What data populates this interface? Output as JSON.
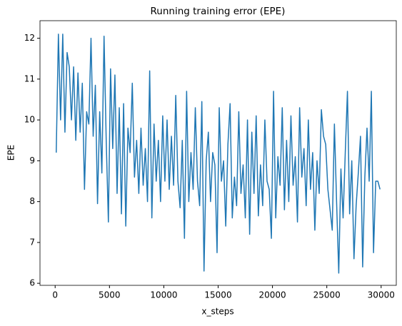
{
  "chart_data": {
    "type": "line",
    "title": "Running training error (EPE)",
    "xlabel": "x_steps",
    "ylabel": "EPE",
    "x": [
      100,
      300,
      500,
      700,
      900,
      1100,
      1300,
      1500,
      1700,
      1900,
      2100,
      2300,
      2500,
      2700,
      2900,
      3100,
      3300,
      3500,
      3700,
      3900,
      4100,
      4300,
      4500,
      4700,
      4900,
      5100,
      5300,
      5500,
      5700,
      5900,
      6100,
      6300,
      6500,
      6700,
      6900,
      7100,
      7300,
      7500,
      7700,
      7900,
      8100,
      8300,
      8500,
      8700,
      8900,
      9100,
      9300,
      9500,
      9700,
      9900,
      10100,
      10300,
      10500,
      10700,
      10900,
      11100,
      11300,
      11500,
      11700,
      11900,
      12100,
      12300,
      12500,
      12700,
      12900,
      13100,
      13300,
      13500,
      13700,
      13900,
      14100,
      14300,
      14500,
      14700,
      14900,
      15100,
      15300,
      15500,
      15700,
      15900,
      16100,
      16300,
      16500,
      16700,
      16900,
      17100,
      17300,
      17500,
      17700,
      17900,
      18100,
      18300,
      18500,
      18700,
      18900,
      19100,
      19300,
      19500,
      19700,
      19900,
      20100,
      20300,
      20500,
      20700,
      20900,
      21100,
      21300,
      21500,
      21700,
      21900,
      22100,
      22300,
      22500,
      22700,
      22900,
      23100,
      23300,
      23500,
      23700,
      23900,
      24100,
      24300,
      24500,
      24700,
      24900,
      25100,
      25300,
      25500,
      25700,
      25900,
      26100,
      26300,
      26500,
      26700,
      26900,
      27100,
      27300,
      27500,
      27700,
      27900,
      28100,
      28300,
      28500,
      28700,
      28900,
      29100,
      29300,
      29500,
      29700,
      29900
    ],
    "series": [
      {
        "name": "EPE",
        "color": "#1f77b4",
        "values": [
          9.2,
          12.1,
          10.0,
          12.1,
          9.7,
          11.65,
          11.3,
          10.0,
          11.3,
          9.5,
          11.15,
          9.7,
          10.9,
          8.3,
          10.2,
          9.9,
          12.0,
          9.6,
          10.85,
          7.95,
          10.2,
          8.7,
          12.05,
          9.5,
          7.5,
          11.25,
          9.3,
          11.1,
          8.2,
          10.3,
          7.7,
          10.4,
          7.4,
          9.8,
          9.2,
          10.9,
          8.6,
          9.5,
          8.2,
          9.8,
          8.4,
          9.3,
          8.0,
          11.2,
          7.6,
          9.9,
          8.5,
          9.5,
          8.0,
          10.1,
          8.5,
          10.0,
          8.3,
          9.6,
          8.4,
          10.6,
          8.5,
          7.85,
          9.5,
          7.1,
          10.7,
          8.0,
          9.2,
          8.3,
          10.3,
          8.5,
          7.9,
          10.45,
          6.3,
          9.0,
          9.7,
          8.0,
          9.2,
          8.9,
          6.75,
          10.3,
          8.5,
          9.0,
          7.4,
          9.4,
          10.4,
          7.6,
          8.6,
          7.9,
          10.2,
          8.2,
          8.9,
          7.6,
          10.0,
          7.2,
          9.7,
          8.2,
          10.1,
          7.65,
          8.9,
          7.9,
          10.0,
          8.5,
          8.3,
          7.1,
          10.7,
          7.6,
          9.1,
          8.4,
          10.3,
          7.8,
          9.5,
          8.0,
          10.1,
          8.4,
          9.1,
          7.5,
          10.3,
          8.6,
          9.3,
          7.9,
          10.0,
          8.3,
          9.2,
          7.3,
          9.0,
          8.2,
          10.25,
          9.6,
          9.4,
          8.3,
          7.8,
          7.3,
          9.9,
          8.0,
          6.25,
          8.8,
          7.6,
          9.2,
          10.7,
          7.7,
          9.0,
          6.6,
          7.9,
          8.7,
          9.6,
          6.4,
          8.6,
          9.8,
          8.5,
          10.7,
          6.75,
          8.5,
          8.5,
          8.3
        ]
      }
    ],
    "xlim": [
      -1395,
      31395
    ],
    "xticks": [
      0,
      5000,
      10000,
      15000,
      20000,
      25000,
      30000
    ],
    "ylim": [
      5.95,
      12.43
    ],
    "yticks": [
      6,
      7,
      8,
      9,
      10,
      11,
      12
    ]
  }
}
